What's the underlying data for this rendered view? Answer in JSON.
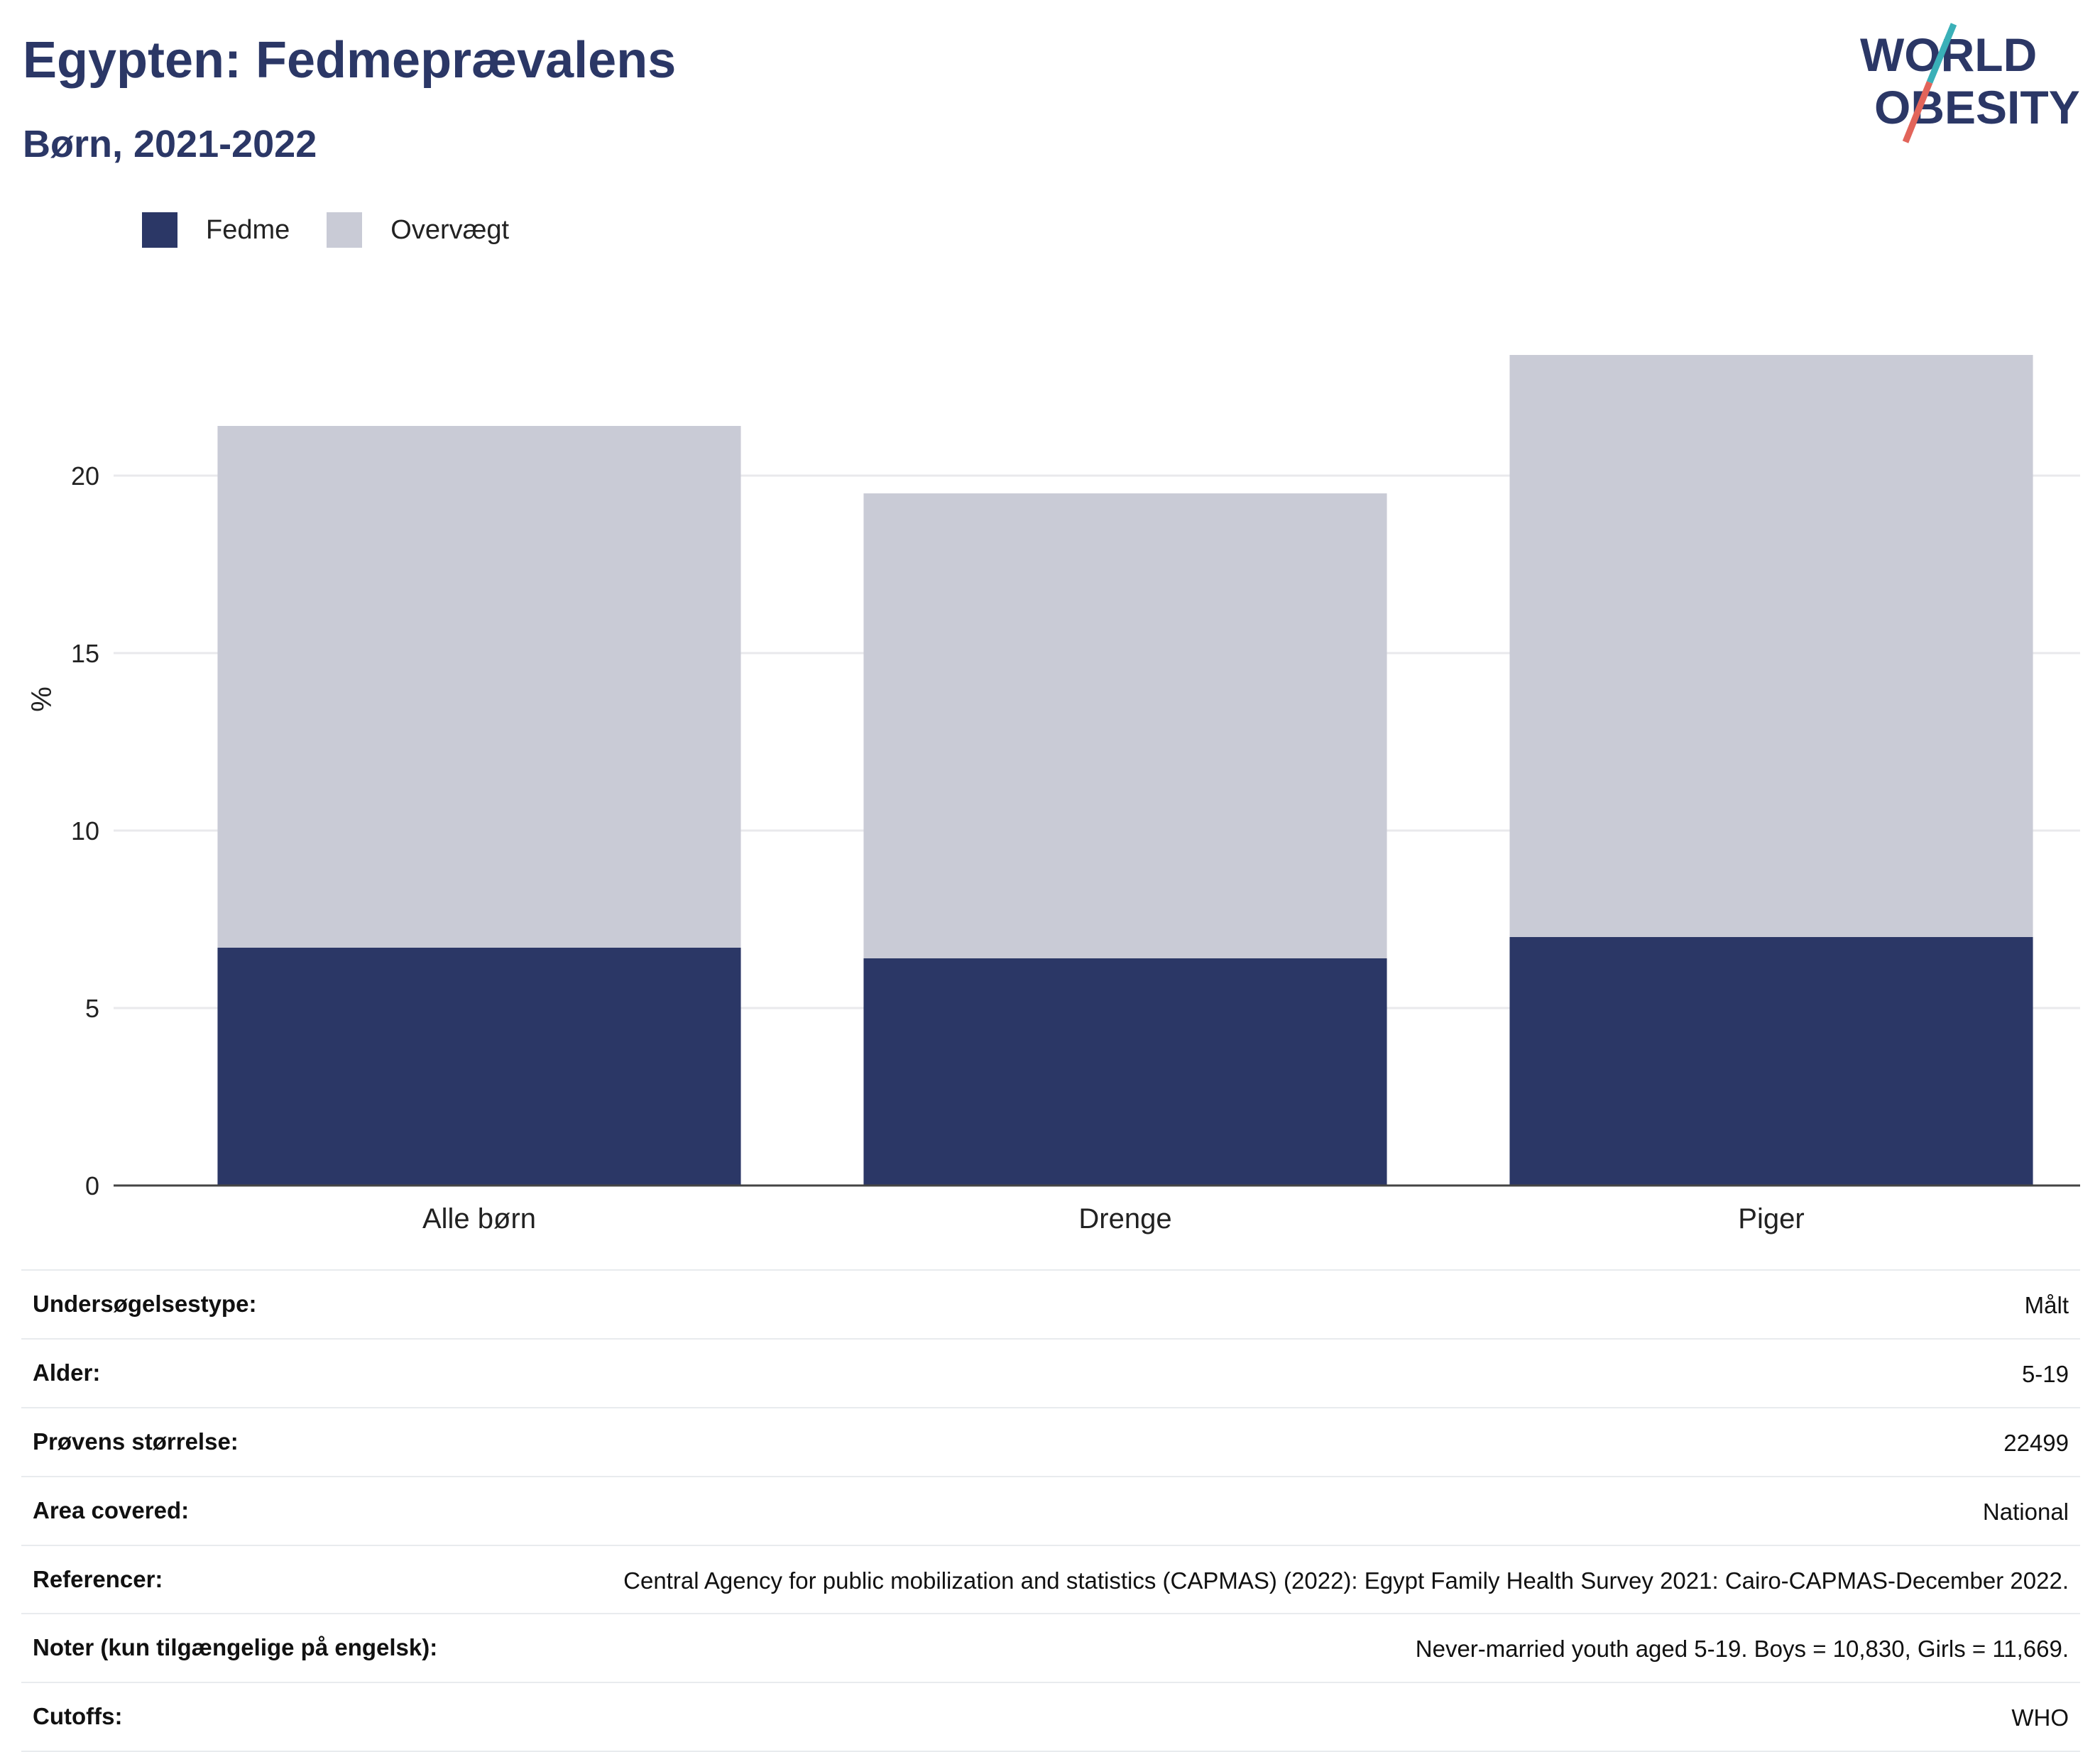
{
  "header": {
    "title": "Egypten: Fedmeprævalens",
    "subtitle": "Børn, 2021-2022"
  },
  "logo": {
    "line1": "WORLD",
    "line2": "OBESITY"
  },
  "colors": {
    "fedme": "#2b3766",
    "overvaegt": "#c9cbd6",
    "title": "#2b3766",
    "logo_teal": "#3ab0b8",
    "logo_red": "#e2645a"
  },
  "chart_data": {
    "type": "bar",
    "stacked": true,
    "categories": [
      "Alle børn",
      "Drenge",
      "Piger"
    ],
    "series": [
      {
        "name": "Fedme",
        "values": [
          6.7,
          6.4,
          7.0
        ]
      },
      {
        "name": "Overvægt",
        "values": [
          14.7,
          13.1,
          16.4
        ]
      }
    ],
    "xlabel": "",
    "ylabel": "%",
    "ylim": [
      0,
      25
    ],
    "yticks": [
      0,
      5,
      10,
      15,
      20
    ],
    "grid": true,
    "legend_position": "top-left"
  },
  "info": [
    {
      "label": "Undersøgelsestype:",
      "value": "Målt"
    },
    {
      "label": "Alder:",
      "value": "5-19"
    },
    {
      "label": "Prøvens størrelse:",
      "value": "22499"
    },
    {
      "label": "Area covered:",
      "value": "National"
    },
    {
      "label": "Referencer:",
      "value": "Central Agency for public mobilization and statistics (CAPMAS) (2022): Egypt Family Health Survey 2021: Cairo-CAPMAS-December 2022."
    },
    {
      "label": "Noter (kun tilgængelige på engelsk):",
      "value": "Never-married youth aged 5-19. Boys = 10,830, Girls = 11,669."
    },
    {
      "label": "Cutoffs:",
      "value": "WHO"
    }
  ]
}
